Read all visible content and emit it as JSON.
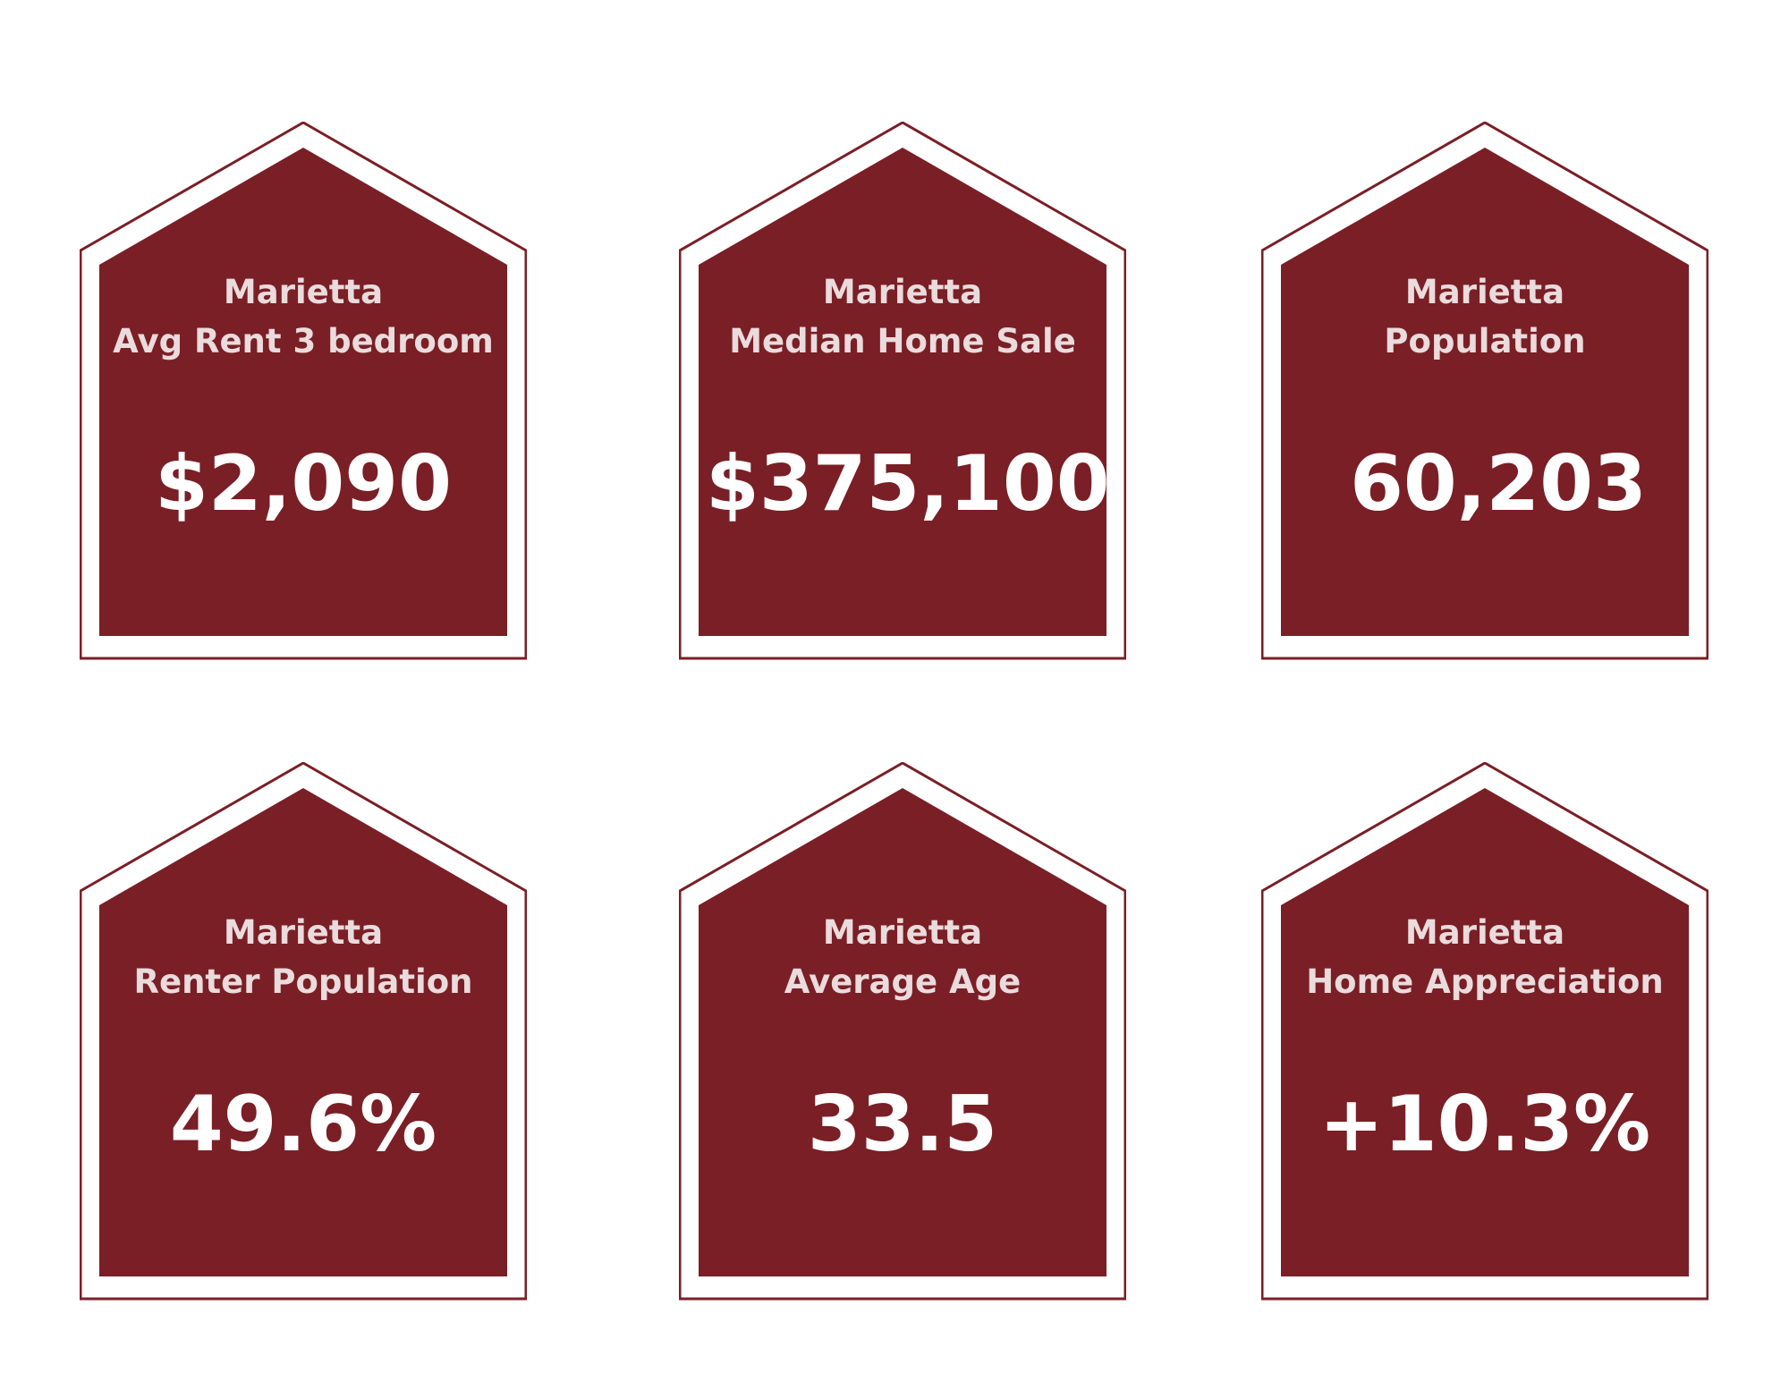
{
  "colors": {
    "house_fill": "#7a1f25",
    "house_outline": "#7a1f25",
    "title_text": "#eadbdd",
    "value_text": "#ffffff",
    "background": "#ffffff"
  },
  "cards": [
    {
      "city": "Marietta",
      "metric": "Avg Rent 3 bedroom",
      "value": "$2,090",
      "icon": "house-shape-icon"
    },
    {
      "city": "Marietta",
      "metric": "Median Home Sale",
      "value": "$375,100",
      "icon": "house-shape-icon"
    },
    {
      "city": "Marietta",
      "metric": "Population",
      "value": "60,203",
      "icon": "house-shape-icon"
    },
    {
      "city": "Marietta",
      "metric": "Renter Population",
      "value": "49.6%",
      "icon": "house-shape-icon"
    },
    {
      "city": "Marietta",
      "metric": "Average Age",
      "value": "33.5",
      "icon": "house-shape-icon"
    },
    {
      "city": "Marietta",
      "metric": "Home Appreciation",
      "value": "+10.3%",
      "icon": "house-shape-icon"
    }
  ]
}
